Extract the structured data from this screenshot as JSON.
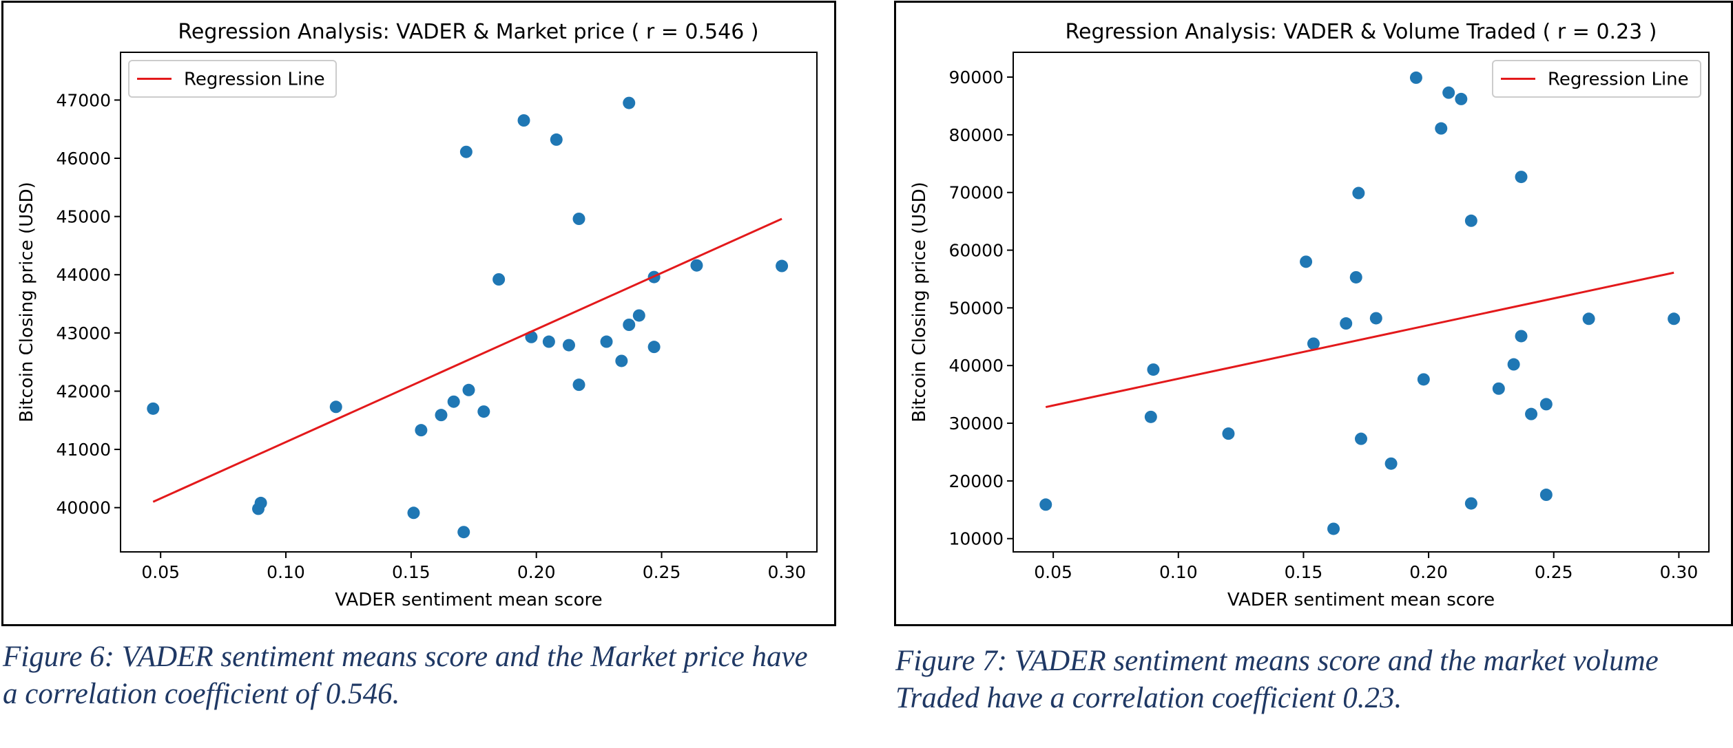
{
  "chart_data": [
    {
      "type": "scatter",
      "title": "Regression Analysis: VADER & Market price ( r = 0.546 )",
      "xlabel": "VADER sentiment mean score",
      "ylabel": "Bitcoin Closing price (USD)",
      "xlim": [
        0.034,
        0.312
      ],
      "ylim": [
        39240,
        47820
      ],
      "xticks": [
        0.05,
        0.1,
        0.15,
        0.2,
        0.25,
        0.3
      ],
      "xtick_labels": [
        "0.05",
        "0.10",
        "0.15",
        "0.20",
        "0.25",
        "0.30"
      ],
      "yticks": [
        40000,
        41000,
        42000,
        43000,
        44000,
        45000,
        46000,
        47000
      ],
      "ytick_labels": [
        "40000",
        "41000",
        "42000",
        "43000",
        "44000",
        "45000",
        "46000",
        "47000"
      ],
      "legend": {
        "position": "upper-left",
        "entries": [
          "Regression Line"
        ]
      },
      "regression": {
        "name": "Regression Line",
        "color": "#e3191b",
        "x": [
          0.047,
          0.298
        ],
        "y": [
          40100,
          44960
        ]
      },
      "points_color": "#1f77b4",
      "x": [
        0.047,
        0.089,
        0.09,
        0.12,
        0.151,
        0.154,
        0.162,
        0.167,
        0.171,
        0.172,
        0.173,
        0.179,
        0.185,
        0.195,
        0.198,
        0.205,
        0.208,
        0.213,
        0.217,
        0.217,
        0.228,
        0.234,
        0.237,
        0.237,
        0.241,
        0.247,
        0.247,
        0.264,
        0.298
      ],
      "y": [
        41700,
        39980,
        40080,
        41730,
        39910,
        41330,
        41590,
        41820,
        39580,
        46110,
        42020,
        41650,
        43920,
        46650,
        42930,
        42850,
        46320,
        42790,
        44960,
        42110,
        42850,
        42520,
        43140,
        46950,
        43300,
        42760,
        43960,
        44160,
        44150
      ]
    },
    {
      "type": "scatter",
      "title": "Regression Analysis: VADER & Volume Traded ( r = 0.23 )",
      "xlabel": "VADER sentiment mean score",
      "ylabel": "Bitcoin Closing price (USD)",
      "xlim": [
        0.034,
        0.312
      ],
      "ylim": [
        7700,
        94300
      ],
      "xticks": [
        0.05,
        0.1,
        0.15,
        0.2,
        0.25,
        0.3
      ],
      "xtick_labels": [
        "0.05",
        "0.10",
        "0.15",
        "0.20",
        "0.25",
        "0.30"
      ],
      "yticks": [
        10000,
        20000,
        30000,
        40000,
        50000,
        60000,
        70000,
        80000,
        90000
      ],
      "ytick_labels": [
        "10000",
        "20000",
        "30000",
        "40000",
        "50000",
        "60000",
        "70000",
        "80000",
        "90000"
      ],
      "legend": {
        "position": "upper-right",
        "entries": [
          "Regression Line"
        ]
      },
      "regression": {
        "name": "Regression Line",
        "color": "#e3191b",
        "x": [
          0.047,
          0.298
        ],
        "y": [
          32800,
          56100
        ]
      },
      "points_color": "#1f77b4",
      "x": [
        0.047,
        0.089,
        0.09,
        0.12,
        0.151,
        0.154,
        0.162,
        0.167,
        0.171,
        0.172,
        0.173,
        0.179,
        0.185,
        0.195,
        0.198,
        0.205,
        0.208,
        0.213,
        0.217,
        0.217,
        0.228,
        0.234,
        0.237,
        0.237,
        0.241,
        0.247,
        0.247,
        0.264,
        0.298
      ],
      "y": [
        15900,
        31100,
        39300,
        28200,
        58000,
        43800,
        11700,
        47300,
        55300,
        69900,
        27300,
        48200,
        23000,
        89900,
        37600,
        81100,
        87300,
        86200,
        65100,
        16100,
        36000,
        40200,
        45100,
        72700,
        31600,
        17600,
        33300,
        48100,
        48100
      ]
    }
  ],
  "captions": {
    "left": "Figure 6: VADER sentiment means score and the Market price have a correlation coefficient of 0.546.",
    "right": "Figure 7: VADER sentiment means score and the market volume Traded have a correlation coefficient 0.23."
  }
}
